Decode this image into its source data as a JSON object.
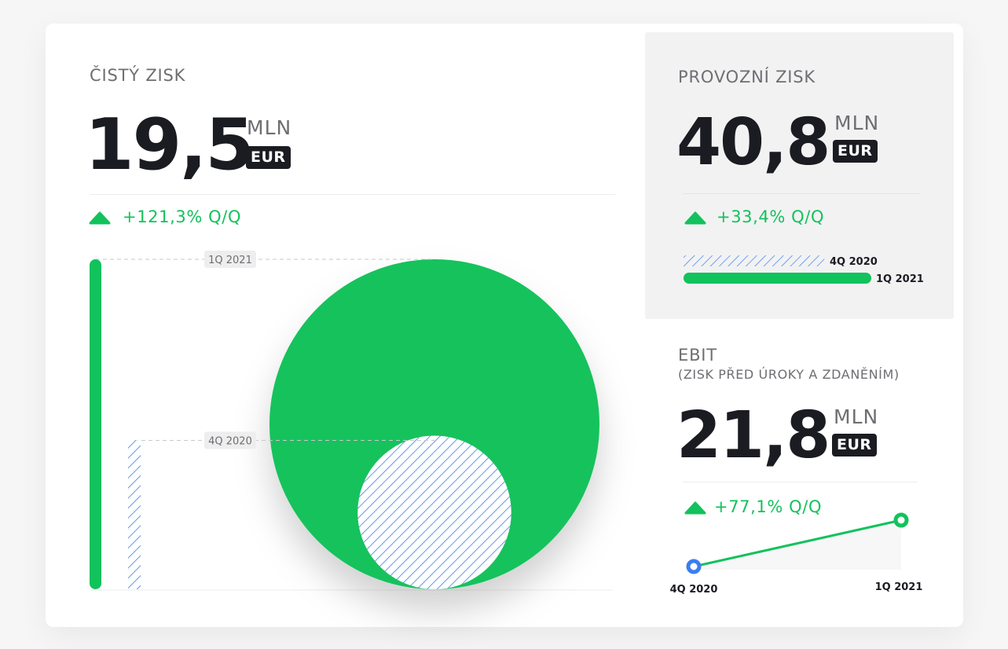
{
  "cisty_zisk": {
    "label": "ČISTÝ ZISK",
    "value": "19,5",
    "unit": "MLN",
    "currency": "EUR",
    "change": "+121,3% Q/Q"
  },
  "provozni_zisk": {
    "label": "PROVOZNÍ ZISK",
    "value": "40,8",
    "unit": "MLN",
    "currency": "EUR",
    "change": "+33,4% Q/Q"
  },
  "ebit": {
    "label": "EBIT",
    "sublabel": "(ZISK PŘED ÚROKY A ZDANĚNÍM)",
    "value": "21,8",
    "unit": "MLN",
    "currency": "EUR",
    "change": "+77,1% Q/Q"
  },
  "colors": {
    "accent_green": "#12c25c",
    "hatch_blue": "#3b7df0",
    "dark": "#1b1b22",
    "panel_gray": "#f2f2f3"
  },
  "chart_data": [
    {
      "type": "bar",
      "chart": "net-profit-circle-and-bars",
      "categories": [
        "4Q 2020",
        "1Q 2021"
      ],
      "values": [
        8.8,
        19.5
      ],
      "title": "",
      "xlabel": "",
      "ylabel": "",
      "ylim": [
        0,
        19.5
      ],
      "legend": "inline"
    },
    {
      "type": "bar",
      "chart": "operating-profit-horizontal-bars",
      "categories": [
        "4Q 2020",
        "1Q 2021"
      ],
      "values": [
        30.6,
        40.8
      ],
      "title": "",
      "xlabel": "",
      "ylabel": "",
      "xlim": [
        0,
        40.8
      ]
    },
    {
      "type": "line",
      "chart": "ebit-line",
      "x": [
        "4Q 2020",
        "1Q 2021"
      ],
      "y": [
        12.3,
        21.8
      ],
      "title": "",
      "xlabel": "",
      "ylabel": ""
    }
  ]
}
